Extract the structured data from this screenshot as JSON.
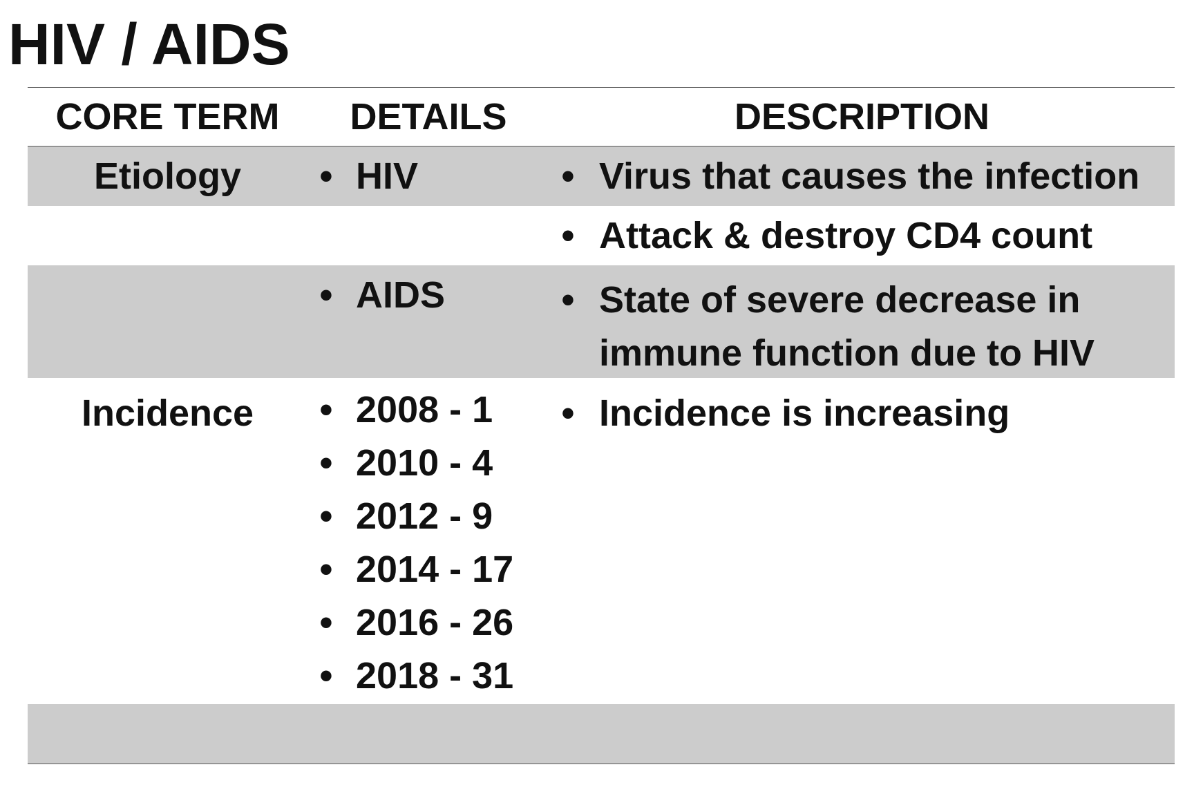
{
  "title": "HIV / AIDS",
  "table": {
    "headers": {
      "core_term": "CORE TERM",
      "details": "DETAILS",
      "description": "DESCRIPTION"
    },
    "bullet": "•",
    "rows": [
      {
        "core_term": "Etiology",
        "details": [
          "HIV"
        ],
        "descriptions": [
          "Virus that causes the infection"
        ]
      },
      {
        "core_term": "",
        "details": [],
        "descriptions": [
          "Attack & destroy CD4 count"
        ]
      },
      {
        "core_term": "",
        "details": [
          "AIDS"
        ],
        "descriptions": [
          "State of severe decrease in immune function due to HIV"
        ]
      },
      {
        "core_term": "Incidence",
        "details": [
          "2008 - 1",
          "2010 - 4",
          "2012 - 9",
          "2014 - 17",
          "2016 - 26",
          "2018 - 31"
        ],
        "descriptions": [
          "Incidence is increasing"
        ]
      },
      {
        "core_term": "",
        "details": [],
        "descriptions": []
      }
    ]
  },
  "colors": {
    "shaded_row": "#cccccc",
    "text": "#111111",
    "rule": "#555555"
  }
}
